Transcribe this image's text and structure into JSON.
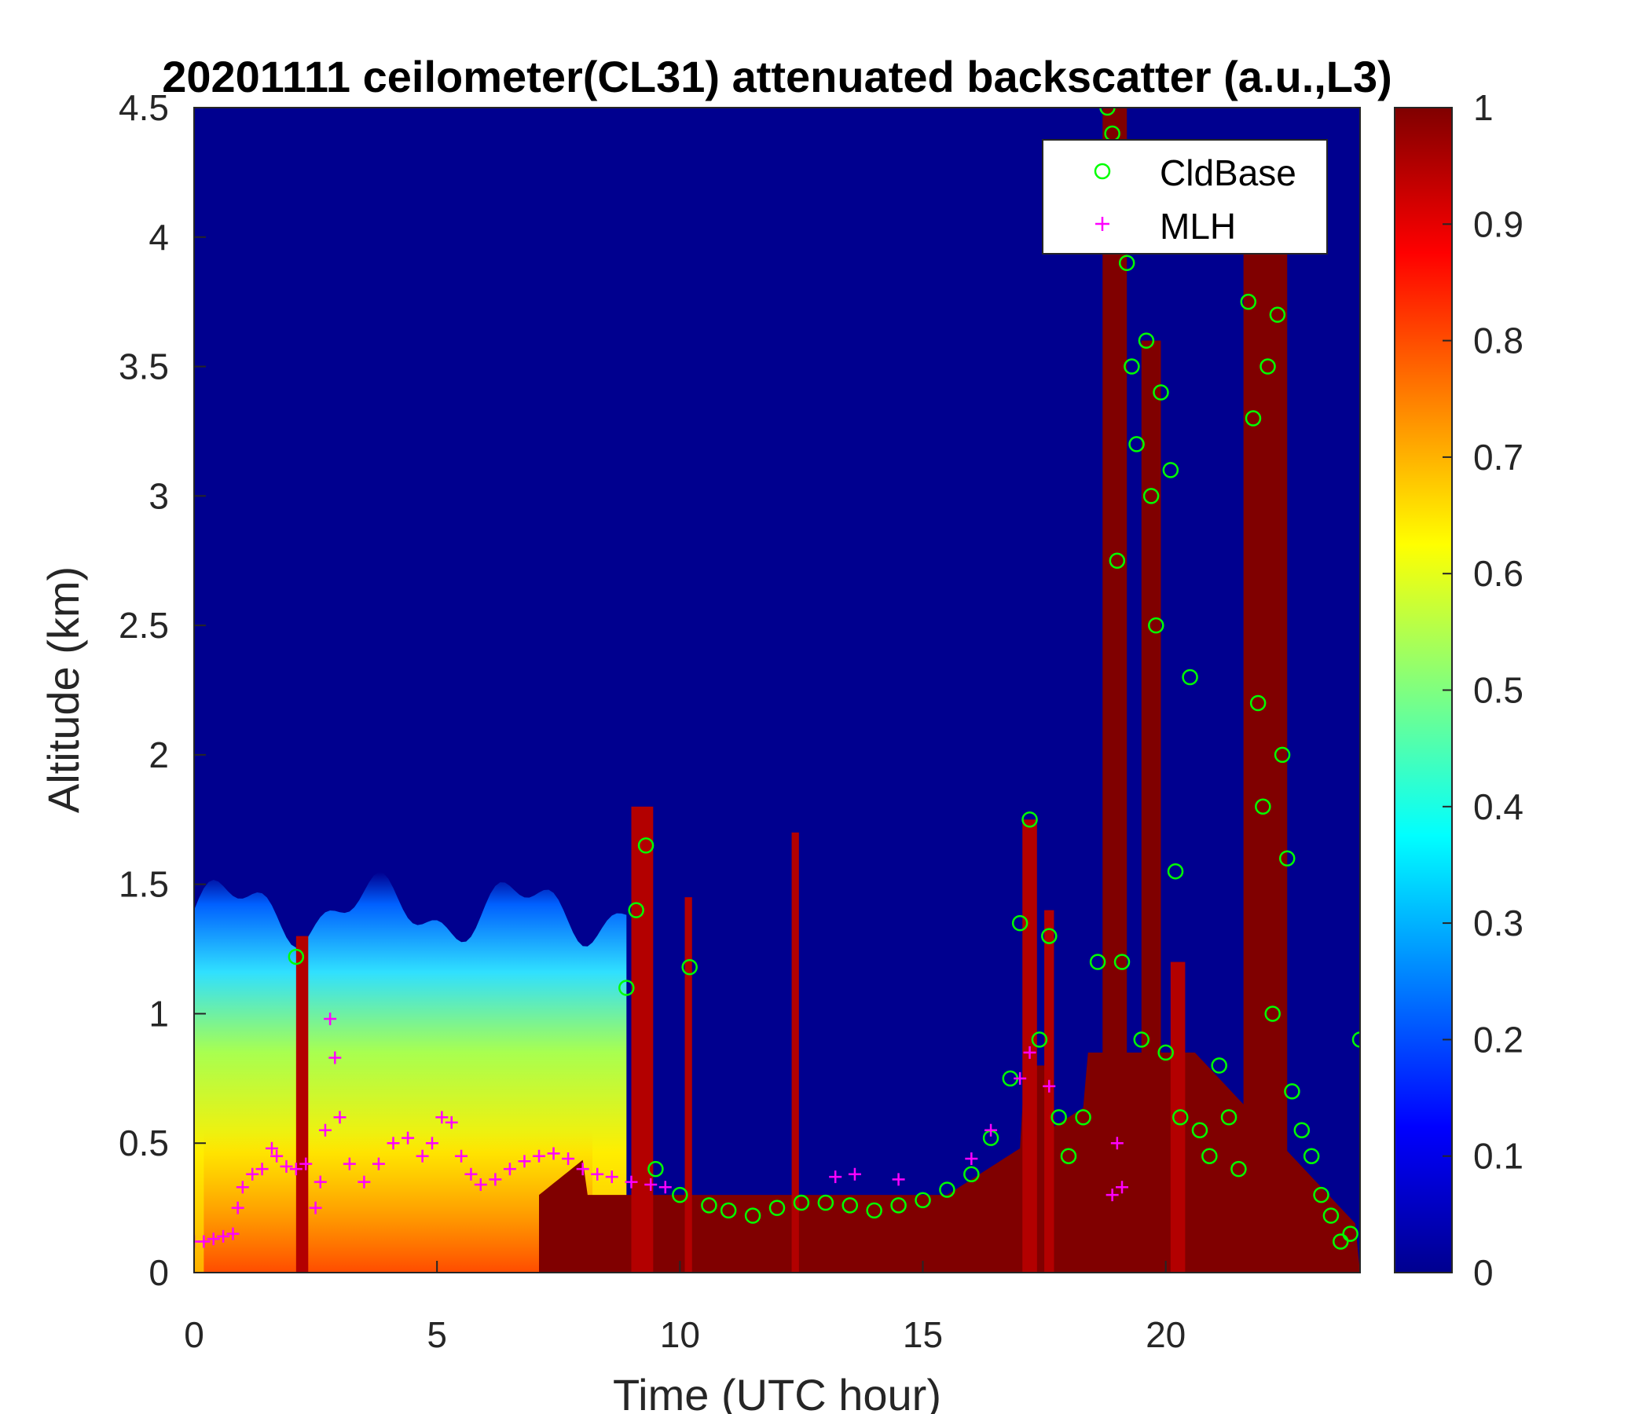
{
  "chart_data": {
    "type": "heatmap",
    "title": "20201111 ceilometer(CL31) attenuated backscatter (a.u.,L3)",
    "xlabel": "Time (UTC hour)",
    "ylabel": "Altitude (km)",
    "xlim": [
      0,
      24
    ],
    "ylim": [
      0,
      4.5
    ],
    "xticks": [
      0,
      5,
      10,
      15,
      20
    ],
    "xtick_labels": [
      "0",
      "5",
      "10",
      "15",
      "20"
    ],
    "yticks": [
      0,
      0.5,
      1,
      1.5,
      2,
      2.5,
      3,
      3.5,
      4,
      4.5
    ],
    "ytick_labels": [
      "0",
      "0.5",
      "1",
      "1.5",
      "2",
      "2.5",
      "3",
      "3.5",
      "4",
      "4.5"
    ],
    "colorbar": {
      "colormap": "jet",
      "range": [
        0,
        1
      ],
      "ticks": [
        0,
        0.1,
        0.2,
        0.3,
        0.4,
        0.5,
        0.6,
        0.7,
        0.8,
        0.9,
        1
      ],
      "tick_labels": [
        "0",
        "0.1",
        "0.2",
        "0.3",
        "0.4",
        "0.5",
        "0.6",
        "0.7",
        "0.8",
        "0.9",
        "1"
      ]
    },
    "heatmap_regions": [
      {
        "t_start": 0,
        "t_end": 8.9,
        "alt_bottom": 0,
        "alt_top": 1.45,
        "description_value": "boundary layer 0.3-0.7"
      },
      {
        "t_start": 7.1,
        "t_end": 24,
        "alt_bottom": 0,
        "alt_top": 0.3,
        "description_value": "near-surface 1.0"
      },
      {
        "t_start": 18.7,
        "t_end": 19.2,
        "alt_bottom": 0,
        "alt_top": 4.5,
        "description_value": "cloud column 1.0"
      },
      {
        "t_start": 19.5,
        "t_end": 19.9,
        "alt_bottom": 0,
        "alt_top": 3.6,
        "description_value": "cloud column 1.0"
      },
      {
        "t_start": 21.6,
        "t_end": 22.5,
        "alt_bottom": 0,
        "alt_top": 4.0,
        "description_value": "cloud column 1.0"
      }
    ],
    "series": [
      {
        "name": "CldBase",
        "marker": "circle",
        "color": "#00ff00",
        "x": [
          2.1,
          8.9,
          9.1,
          9.3,
          9.5,
          10.0,
          10.2,
          10.6,
          11.0,
          11.5,
          12.0,
          12.5,
          13.0,
          13.5,
          14.0,
          14.5,
          15.0,
          15.5,
          16.0,
          16.4,
          16.8,
          17.0,
          17.2,
          17.4,
          17.6,
          17.8,
          18.0,
          18.3,
          18.6,
          18.8,
          18.9,
          19.0,
          19.1,
          19.2,
          19.3,
          19.4,
          19.5,
          19.6,
          19.7,
          19.8,
          19.9,
          20.0,
          20.1,
          20.2,
          20.3,
          20.5,
          20.7,
          20.9,
          21.1,
          21.3,
          21.5,
          21.7,
          21.8,
          21.9,
          22.0,
          22.1,
          22.2,
          22.3,
          22.4,
          22.5,
          22.6,
          22.8,
          23.0,
          23.2,
          23.4,
          23.6,
          23.8,
          24.0
        ],
        "y": [
          1.22,
          1.1,
          1.4,
          1.65,
          0.4,
          0.3,
          1.18,
          0.26,
          0.24,
          0.22,
          0.25,
          0.27,
          0.27,
          0.26,
          0.24,
          0.26,
          0.28,
          0.32,
          0.38,
          0.52,
          0.75,
          1.35,
          1.75,
          0.9,
          1.3,
          0.6,
          0.45,
          0.6,
          1.2,
          4.5,
          4.4,
          2.75,
          1.2,
          3.9,
          3.5,
          3.2,
          0.9,
          3.6,
          3.0,
          2.5,
          3.4,
          0.85,
          3.1,
          1.55,
          0.6,
          2.3,
          0.55,
          0.45,
          0.8,
          0.6,
          0.4,
          3.75,
          3.3,
          2.2,
          1.8,
          3.5,
          1.0,
          3.7,
          2.0,
          1.6,
          0.7,
          0.55,
          0.45,
          0.3,
          0.22,
          0.12,
          0.15,
          0.9
        ]
      },
      {
        "name": "MLH",
        "marker": "plus",
        "color": "#ff00ff",
        "x": [
          0.0,
          0.2,
          0.4,
          0.6,
          0.8,
          0.9,
          1.0,
          1.2,
          1.4,
          1.6,
          1.7,
          1.9,
          2.1,
          2.3,
          2.5,
          2.6,
          2.7,
          2.8,
          2.9,
          3.0,
          3.2,
          3.5,
          3.8,
          4.1,
          4.4,
          4.7,
          4.9,
          5.1,
          5.3,
          5.5,
          5.7,
          5.9,
          6.2,
          6.5,
          6.8,
          7.1,
          7.4,
          7.7,
          8.0,
          8.3,
          8.6,
          9.0,
          9.4,
          9.7,
          13.2,
          13.6,
          14.5,
          16.0,
          16.4,
          17.0,
          17.2,
          17.6,
          18.9,
          19.0,
          19.1
        ],
        "y": [
          0.12,
          0.12,
          0.13,
          0.14,
          0.15,
          0.25,
          0.33,
          0.38,
          0.4,
          0.48,
          0.45,
          0.41,
          0.4,
          0.42,
          0.25,
          0.35,
          0.55,
          0.98,
          0.83,
          0.6,
          0.42,
          0.35,
          0.42,
          0.5,
          0.52,
          0.45,
          0.5,
          0.6,
          0.58,
          0.45,
          0.38,
          0.34,
          0.36,
          0.4,
          0.43,
          0.45,
          0.46,
          0.44,
          0.4,
          0.38,
          0.37,
          0.35,
          0.34,
          0.33,
          0.37,
          0.38,
          0.36,
          0.44,
          0.55,
          0.75,
          0.85,
          0.72,
          0.3,
          0.5,
          0.33
        ]
      }
    ],
    "legend": {
      "location": "top-right",
      "entries": [
        "CldBase",
        "MLH"
      ]
    }
  }
}
